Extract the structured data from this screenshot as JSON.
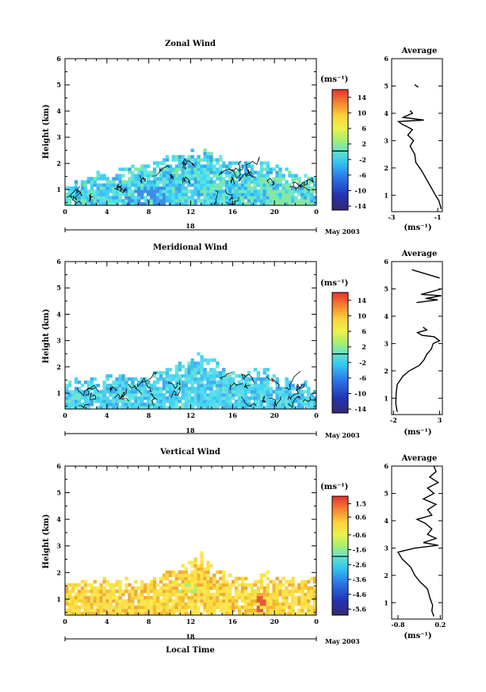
{
  "figure": {
    "date_label": "May 2003",
    "time_axis_label": "Local Time",
    "day_label": "18",
    "x_ticks": [
      "0",
      "4",
      "8",
      "12",
      "16",
      "20",
      "0"
    ]
  },
  "chart_data": [
    {
      "type": "heatmap",
      "title": "Zonal Wind",
      "ylabel": "Height (km)",
      "xlabel": "",
      "x_range_hours": [
        0,
        24
      ],
      "ylim": [
        0.4,
        6
      ],
      "y_ticks": [
        "1",
        "2",
        "3",
        "4",
        "5",
        "6"
      ],
      "colorbar": {
        "unit": "(ms⁻¹)",
        "range": [
          -15,
          16
        ],
        "ticks": [
          "14",
          "10",
          "6",
          "2",
          "-2",
          "-6",
          "-10",
          "-14"
        ],
        "tick_values": [
          14,
          10,
          6,
          2,
          -2,
          -6,
          -10,
          -14
        ]
      },
      "top_profile": [
        [
          0,
          1.2
        ],
        [
          2,
          1.4
        ],
        [
          4,
          1.55
        ],
        [
          6,
          1.75
        ],
        [
          8,
          1.95
        ],
        [
          10,
          2.2
        ],
        [
          12,
          2.3
        ],
        [
          13,
          2.55
        ],
        [
          14,
          2.3
        ],
        [
          16,
          2.0
        ],
        [
          18,
          1.85
        ],
        [
          19,
          2.0
        ],
        [
          20,
          1.75
        ],
        [
          22,
          1.55
        ],
        [
          24,
          1.5
        ]
      ],
      "average": {
        "title": "Average",
        "xlabel": "(ms⁻¹)",
        "xlim": [
          -3,
          -0.8
        ],
        "x_ticks": [
          "-3",
          "-1"
        ],
        "x_tick_values": [
          -3,
          -1
        ],
        "y_ticks": [
          "1",
          "2",
          "3",
          "4",
          "5",
          "6"
        ],
        "profile": [
          {
            "x": -0.85,
            "y": 0.5
          },
          {
            "x": -0.95,
            "y": 0.8
          },
          {
            "x": -1.1,
            "y": 1.0
          },
          {
            "x": -1.3,
            "y": 1.3
          },
          {
            "x": -1.5,
            "y": 1.6
          },
          {
            "x": -1.7,
            "y": 1.9
          },
          {
            "x": -1.95,
            "y": 2.2
          },
          {
            "x": -2.0,
            "y": 2.5
          },
          {
            "x": -2.2,
            "y": 2.8
          },
          {
            "x": -2.05,
            "y": 3.0
          },
          {
            "x": -2.3,
            "y": 3.2
          },
          {
            "x": -2.1,
            "y": 3.4
          },
          {
            "x": -2.3,
            "y": 3.5
          },
          {
            "x": -2.55,
            "y": 3.6
          },
          {
            "x": -2.7,
            "y": 3.7
          },
          {
            "x": -1.6,
            "y": 3.75
          },
          {
            "x": -2.5,
            "y": 3.85
          },
          {
            "x": -2.1,
            "y": 4.0
          },
          {
            "x": -2.2,
            "y": 4.1
          }
        ],
        "fragment": [
          {
            "x": -2.0,
            "y": 5.05
          },
          {
            "x": -1.85,
            "y": 4.95
          }
        ]
      }
    },
    {
      "type": "heatmap",
      "title": "Meridional Wind",
      "ylabel": "Height (km)",
      "xlabel": "",
      "x_range_hours": [
        0,
        24
      ],
      "ylim": [
        0.4,
        6
      ],
      "y_ticks": [
        "1",
        "2",
        "3",
        "4",
        "5",
        "6"
      ],
      "colorbar": {
        "unit": "(ms⁻¹)",
        "range": [
          -15,
          16
        ],
        "ticks": [
          "14",
          "10",
          "6",
          "2",
          "-2",
          "-6",
          "-10",
          "-14"
        ],
        "tick_values": [
          14,
          10,
          6,
          2,
          -2,
          -6,
          -10,
          -14
        ]
      },
      "top_profile": [
        [
          0,
          1.3
        ],
        [
          2,
          1.5
        ],
        [
          4,
          1.55
        ],
        [
          6,
          1.65
        ],
        [
          8,
          1.7
        ],
        [
          10,
          1.9
        ],
        [
          12,
          2.2
        ],
        [
          13,
          2.45
        ],
        [
          14,
          2.2
        ],
        [
          16,
          1.7
        ],
        [
          18,
          1.8
        ],
        [
          19,
          2.0
        ],
        [
          20,
          1.6
        ],
        [
          22,
          1.4
        ],
        [
          24,
          1.2
        ]
      ],
      "average": {
        "title": "Average",
        "xlabel": "(ms⁻¹)",
        "xlim": [
          -2.2,
          3.3
        ],
        "x_ticks": [
          "-2",
          "3"
        ],
        "x_tick_values": [
          -2,
          3
        ],
        "y_ticks": [
          "1",
          "2",
          "3",
          "4",
          "5",
          "6"
        ],
        "profile": [
          {
            "x": -1.6,
            "y": 0.5
          },
          {
            "x": -1.75,
            "y": 0.8
          },
          {
            "x": -1.7,
            "y": 1.2
          },
          {
            "x": -1.6,
            "y": 1.5
          },
          {
            "x": -1.0,
            "y": 1.8
          },
          {
            "x": -0.3,
            "y": 2.0
          },
          {
            "x": 0.8,
            "y": 2.2
          },
          {
            "x": 1.3,
            "y": 2.4
          },
          {
            "x": 1.6,
            "y": 2.6
          },
          {
            "x": 2.1,
            "y": 2.8
          },
          {
            "x": 2.3,
            "y": 3.0
          },
          {
            "x": 3.0,
            "y": 3.1
          },
          {
            "x": 2.4,
            "y": 3.25
          },
          {
            "x": 1.1,
            "y": 3.3
          },
          {
            "x": 0.6,
            "y": 3.4
          },
          {
            "x": 1.6,
            "y": 3.5
          },
          {
            "x": 1.2,
            "y": 3.6
          }
        ],
        "fragment": [
          {
            "x": 0.5,
            "y": 4.5
          },
          {
            "x": 2.8,
            "y": 4.6
          },
          {
            "x": 1.5,
            "y": 4.65
          },
          {
            "x": 3.2,
            "y": 4.75
          },
          {
            "x": 1.0,
            "y": 4.8
          },
          {
            "x": 3.2,
            "y": 5.0
          }
        ],
        "fragment2": [
          {
            "x": 0.0,
            "y": 5.7
          },
          {
            "x": 3.0,
            "y": 5.4
          }
        ]
      }
    },
    {
      "type": "heatmap",
      "title": "Vertical Wind",
      "ylabel": "Height (km)",
      "xlabel": "Local Time",
      "x_range_hours": [
        0,
        24
      ],
      "ylim": [
        0.4,
        6
      ],
      "y_ticks": [
        "1",
        "2",
        "3",
        "4",
        "5",
        "6"
      ],
      "colorbar": {
        "unit": "(ms⁻¹)",
        "range": [
          -6.0,
          2.0
        ],
        "ticks": [
          "1.5",
          "0.6",
          "-0.6",
          "-1.6",
          "-2.6",
          "-3.6",
          "-4.6",
          "-5.6"
        ],
        "tick_values": [
          1.5,
          0.6,
          -0.6,
          -1.6,
          -2.6,
          -3.6,
          -4.6,
          -5.6
        ]
      },
      "top_profile": [
        [
          0,
          1.55
        ],
        [
          2,
          1.6
        ],
        [
          4,
          1.6
        ],
        [
          6,
          1.6
        ],
        [
          8,
          1.7
        ],
        [
          10,
          1.95
        ],
        [
          11,
          2.2
        ],
        [
          13,
          2.6
        ],
        [
          14,
          2.1
        ],
        [
          16,
          1.8
        ],
        [
          18,
          1.7
        ],
        [
          19,
          1.9
        ],
        [
          20,
          1.8
        ],
        [
          22,
          1.7
        ],
        [
          24,
          1.7
        ]
      ],
      "average": {
        "title": "Average",
        "xlabel": "(ms⁻¹)",
        "xlim": [
          -0.95,
          0.25
        ],
        "x_ticks": [
          "-0.8",
          "0.2"
        ],
        "x_tick_values": [
          -0.8,
          0.2
        ],
        "y_ticks": [
          "1",
          "2",
          "3",
          "4",
          "5",
          "6"
        ],
        "profile": [
          {
            "x": 0.05,
            "y": 0.5
          },
          {
            "x": 0.0,
            "y": 0.7
          },
          {
            "x": 0.02,
            "y": 0.9
          },
          {
            "x": -0.05,
            "y": 1.2
          },
          {
            "x": -0.1,
            "y": 1.5
          },
          {
            "x": -0.3,
            "y": 1.8
          },
          {
            "x": -0.4,
            "y": 2.0
          },
          {
            "x": -0.5,
            "y": 2.3
          },
          {
            "x": -0.7,
            "y": 2.6
          },
          {
            "x": -0.8,
            "y": 2.85
          },
          {
            "x": -0.4,
            "y": 3.0
          },
          {
            "x": 0.15,
            "y": 3.1
          },
          {
            "x": -0.2,
            "y": 3.2
          },
          {
            "x": 0.1,
            "y": 3.35
          },
          {
            "x": -0.1,
            "y": 3.5
          },
          {
            "x": 0.0,
            "y": 3.7
          },
          {
            "x": -0.15,
            "y": 3.9
          },
          {
            "x": -0.35,
            "y": 4.05
          },
          {
            "x": 0.0,
            "y": 4.2
          },
          {
            "x": -0.1,
            "y": 4.4
          },
          {
            "x": 0.1,
            "y": 4.6
          },
          {
            "x": -0.2,
            "y": 4.8
          },
          {
            "x": 0.05,
            "y": 5.0
          },
          {
            "x": -0.1,
            "y": 5.2
          },
          {
            "x": 0.15,
            "y": 5.4
          },
          {
            "x": -0.05,
            "y": 5.6
          },
          {
            "x": 0.1,
            "y": 5.8
          },
          {
            "x": 0.05,
            "y": 6.0
          }
        ]
      }
    }
  ]
}
